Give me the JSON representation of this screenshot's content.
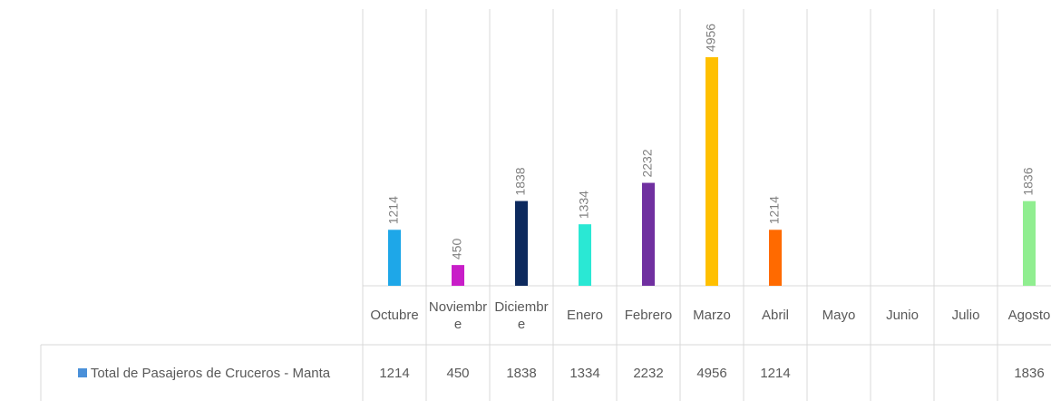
{
  "chart_data": {
    "type": "bar",
    "series_name": "Total de Pasajeros de Cruceros - Manta",
    "categories": [
      "Octubre",
      "Noviembre",
      "Diciembre",
      "Enero",
      "Febrero",
      "Marzo",
      "Abril",
      "Mayo",
      "Junio",
      "Julio",
      "Agosto"
    ],
    "values": [
      1214,
      450,
      1838,
      1334,
      2232,
      4956,
      1214,
      null,
      null,
      null,
      1836
    ],
    "colors": [
      "#1ea7e8",
      "#c81ec8",
      "#0d2a5e",
      "#2ae8d4",
      "#7030a0",
      "#ffc000",
      "#ff6a00",
      null,
      null,
      null,
      "#90ee90"
    ],
    "legend_color": "#4a90d9",
    "ylim": [
      0,
      6000
    ]
  }
}
